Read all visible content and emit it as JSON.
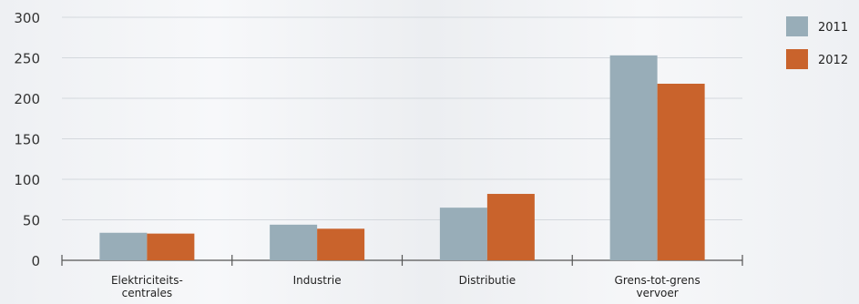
{
  "chart_data": {
    "type": "bar",
    "title": "",
    "xlabel": "",
    "ylabel": "",
    "categories": [
      [
        "Elektriciteits-",
        "centrales"
      ],
      [
        "Industrie"
      ],
      [
        "Distributie"
      ],
      [
        "Grens-tot-grens",
        "vervoer"
      ]
    ],
    "series": [
      {
        "name": "2011",
        "color": "#98adb8",
        "values": [
          34,
          44,
          65,
          253
        ]
      },
      {
        "name": "2012",
        "color": "#c9632c",
        "values": [
          33,
          39,
          82,
          218
        ]
      }
    ],
    "yticks": [
      0,
      50,
      100,
      150,
      200,
      250,
      300
    ],
    "ylim": [
      0,
      300
    ],
    "grid": true,
    "legend": "top-right"
  }
}
